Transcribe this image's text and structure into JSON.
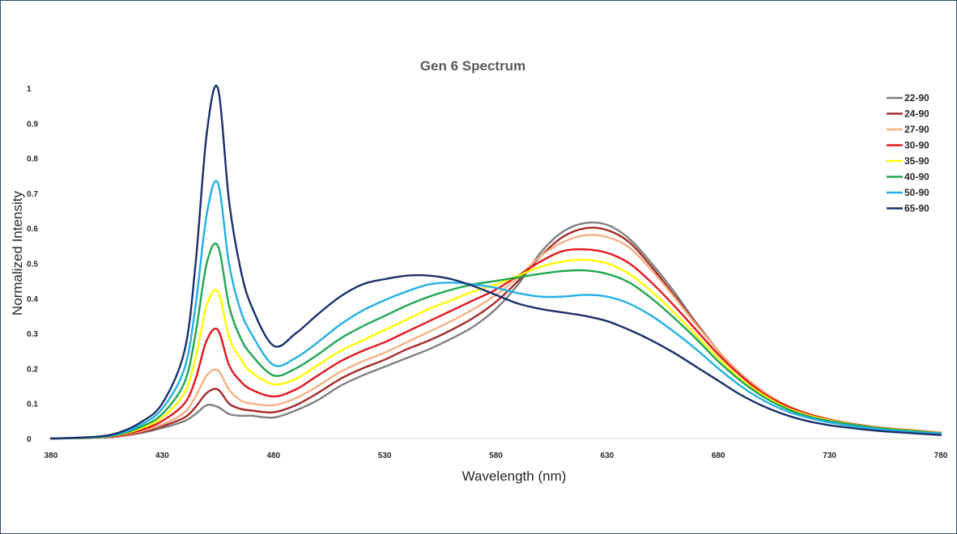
{
  "chart_data": {
    "type": "line",
    "title": "Gen 6 Spectrum",
    "xlabel": "Wavelength (nm)",
    "ylabel": "Normalized Intensity",
    "xlim": [
      380,
      780
    ],
    "ylim": [
      0,
      1
    ],
    "x_ticks": [
      "380",
      "430",
      "480",
      "530",
      "580",
      "630",
      "680",
      "730",
      "780"
    ],
    "y_ticks": [
      "0",
      "0.1",
      "0.2",
      "0.3",
      "0.4",
      "0.5",
      "0.6",
      "0.7",
      "0.8",
      "0.9",
      "1"
    ],
    "grid": false,
    "legend_position": "right",
    "x": [
      380,
      400,
      410,
      420,
      430,
      440,
      445,
      450,
      455,
      460,
      465,
      470,
      480,
      490,
      500,
      510,
      520,
      530,
      540,
      550,
      560,
      570,
      580,
      590,
      600,
      610,
      620,
      630,
      640,
      650,
      660,
      670,
      680,
      690,
      700,
      710,
      720,
      730,
      740,
      750,
      760,
      770,
      780
    ],
    "series": [
      {
        "name": "22-90",
        "color": "#7f7f7f",
        "values": [
          0,
          0.002,
          0.006,
          0.015,
          0.03,
          0.05,
          0.07,
          0.095,
          0.09,
          0.07,
          0.065,
          0.065,
          0.06,
          0.08,
          0.11,
          0.15,
          0.18,
          0.205,
          0.23,
          0.255,
          0.285,
          0.32,
          0.37,
          0.44,
          0.53,
          0.59,
          0.615,
          0.61,
          0.57,
          0.5,
          0.42,
          0.33,
          0.25,
          0.18,
          0.13,
          0.09,
          0.065,
          0.05,
          0.04,
          0.03,
          0.025,
          0.02,
          0.015
        ]
      },
      {
        "name": "24-90",
        "color": "#a52a2a",
        "values": [
          0,
          0.002,
          0.006,
          0.017,
          0.035,
          0.06,
          0.09,
          0.13,
          0.14,
          0.1,
          0.085,
          0.08,
          0.075,
          0.095,
          0.13,
          0.17,
          0.2,
          0.225,
          0.255,
          0.28,
          0.31,
          0.345,
          0.39,
          0.45,
          0.52,
          0.575,
          0.6,
          0.595,
          0.56,
          0.49,
          0.41,
          0.33,
          0.25,
          0.185,
          0.135,
          0.095,
          0.07,
          0.053,
          0.042,
          0.032,
          0.026,
          0.021,
          0.016
        ]
      },
      {
        "name": "27-90",
        "color": "#f4b183",
        "values": [
          0,
          0.002,
          0.007,
          0.02,
          0.04,
          0.075,
          0.12,
          0.18,
          0.195,
          0.14,
          0.11,
          0.1,
          0.095,
          0.115,
          0.15,
          0.19,
          0.22,
          0.245,
          0.275,
          0.305,
          0.335,
          0.37,
          0.41,
          0.46,
          0.52,
          0.56,
          0.58,
          0.575,
          0.545,
          0.48,
          0.405,
          0.325,
          0.25,
          0.185,
          0.135,
          0.097,
          0.072,
          0.055,
          0.043,
          0.033,
          0.027,
          0.022,
          0.017
        ]
      },
      {
        "name": "30-90",
        "color": "#e3161e",
        "values": [
          0,
          0.003,
          0.008,
          0.023,
          0.05,
          0.1,
          0.17,
          0.28,
          0.31,
          0.21,
          0.165,
          0.14,
          0.12,
          0.14,
          0.18,
          0.22,
          0.25,
          0.275,
          0.305,
          0.335,
          0.365,
          0.395,
          0.425,
          0.465,
          0.505,
          0.535,
          0.54,
          0.53,
          0.5,
          0.445,
          0.38,
          0.31,
          0.24,
          0.18,
          0.13,
          0.095,
          0.07,
          0.054,
          0.042,
          0.033,
          0.027,
          0.022,
          0.017
        ]
      },
      {
        "name": "35-90",
        "color": "#ffff00",
        "values": [
          0,
          0.003,
          0.01,
          0.028,
          0.06,
          0.13,
          0.23,
          0.38,
          0.42,
          0.29,
          0.23,
          0.19,
          0.155,
          0.17,
          0.21,
          0.25,
          0.28,
          0.31,
          0.34,
          0.37,
          0.395,
          0.42,
          0.44,
          0.465,
          0.49,
          0.505,
          0.51,
          0.5,
          0.47,
          0.42,
          0.36,
          0.295,
          0.23,
          0.17,
          0.125,
          0.09,
          0.067,
          0.052,
          0.041,
          0.032,
          0.026,
          0.021,
          0.016
        ]
      },
      {
        "name": "40-90",
        "color": "#1fa650",
        "values": [
          0,
          0.003,
          0.011,
          0.032,
          0.07,
          0.16,
          0.3,
          0.5,
          0.55,
          0.38,
          0.29,
          0.24,
          0.18,
          0.2,
          0.24,
          0.285,
          0.32,
          0.35,
          0.38,
          0.405,
          0.425,
          0.44,
          0.45,
          0.46,
          0.47,
          0.478,
          0.48,
          0.47,
          0.445,
          0.4,
          0.345,
          0.285,
          0.22,
          0.165,
          0.12,
          0.087,
          0.064,
          0.05,
          0.04,
          0.031,
          0.025,
          0.02,
          0.015
        ]
      },
      {
        "name": "50-90",
        "color": "#22b0e4",
        "values": [
          0,
          0.004,
          0.013,
          0.038,
          0.085,
          0.2,
          0.38,
          0.64,
          0.73,
          0.5,
          0.37,
          0.3,
          0.21,
          0.23,
          0.275,
          0.325,
          0.365,
          0.395,
          0.42,
          0.44,
          0.445,
          0.44,
          0.43,
          0.415,
          0.405,
          0.405,
          0.41,
          0.405,
          0.385,
          0.35,
          0.305,
          0.255,
          0.2,
          0.15,
          0.11,
          0.08,
          0.06,
          0.046,
          0.036,
          0.028,
          0.022,
          0.018,
          0.014
        ]
      },
      {
        "name": "65-90",
        "color": "#1a2f6b",
        "values": [
          0,
          0.005,
          0.016,
          0.045,
          0.1,
          0.25,
          0.5,
          0.87,
          1.0,
          0.68,
          0.49,
          0.38,
          0.265,
          0.3,
          0.355,
          0.405,
          0.44,
          0.455,
          0.465,
          0.465,
          0.455,
          0.435,
          0.41,
          0.385,
          0.37,
          0.36,
          0.35,
          0.335,
          0.31,
          0.28,
          0.245,
          0.205,
          0.165,
          0.125,
          0.093,
          0.068,
          0.05,
          0.038,
          0.03,
          0.023,
          0.018,
          0.014,
          0.01
        ]
      }
    ]
  }
}
